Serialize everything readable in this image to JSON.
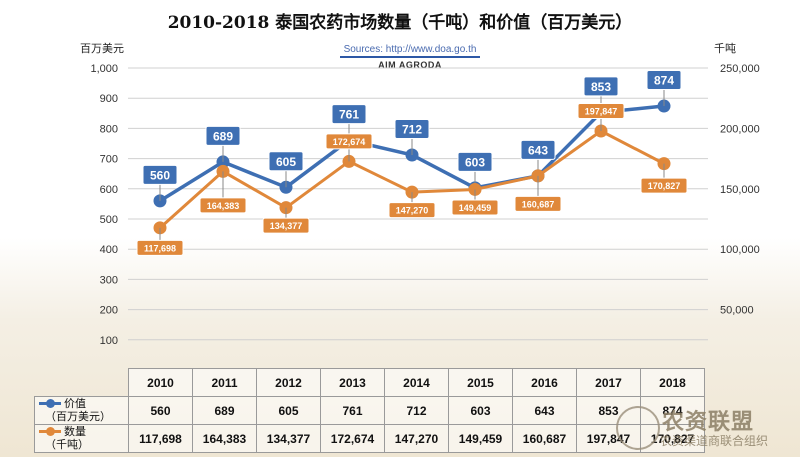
{
  "chart_data": {
    "type": "line",
    "title": "2010-2018 泰国农药市场数量（千吨）和价值（百万美元）",
    "source": "Sources: http://www.doa.go.th",
    "brand": "AIM AGRODA",
    "y_left_label": "百万美元",
    "y_right_label": "千吨",
    "y_left_ticks": [
      "1,000",
      "900",
      "800",
      "700",
      "600",
      "500",
      "400",
      "300",
      "200",
      "100"
    ],
    "y_right_ticks": [
      "250,000",
      "200,000",
      "150,000",
      "100,000",
      "50,000"
    ],
    "ylim_left": [
      0,
      1000
    ],
    "ylim_right": [
      0,
      250000
    ],
    "grid": true,
    "categories": [
      "2010",
      "2011",
      "2012",
      "2013",
      "2014",
      "2015",
      "2016",
      "2017",
      "2018"
    ],
    "series": [
      {
        "name": "价值（百万美元）",
        "axis": "left",
        "color": "#3e6fb3",
        "values": [
          560,
          689,
          605,
          761,
          712,
          603,
          643,
          853,
          874
        ],
        "labels": [
          "560",
          "689",
          "605",
          "761",
          "712",
          "603",
          "643",
          "853",
          "874"
        ]
      },
      {
        "name": "数量（千吨）",
        "axis": "right",
        "color": "#e0883a",
        "values": [
          117698,
          164383,
          134377,
          172674,
          147270,
          149459,
          160687,
          197847,
          170827
        ],
        "labels": [
          "117,698",
          "164,383",
          "134,377",
          "172,674",
          "147,270",
          "149,459",
          "160,687",
          "197,847",
          "170,827"
        ]
      }
    ]
  },
  "table": {
    "value_row": {
      "label_main": "价值",
      "label_sub": "（百万美元）",
      "cells": [
        "560",
        "689",
        "605",
        "761",
        "712",
        "603",
        "643",
        "853",
        "874"
      ]
    },
    "qty_row": {
      "label_main": "数量",
      "label_sub": "（千吨）",
      "cells": [
        "117,698",
        "164,383",
        "134,377",
        "172,674",
        "147,270",
        "149,459",
        "160,687",
        "197,847",
        "170,827"
      ]
    }
  },
  "watermark": {
    "main": "农资联盟",
    "sub": "农资渠道商联合组织"
  }
}
